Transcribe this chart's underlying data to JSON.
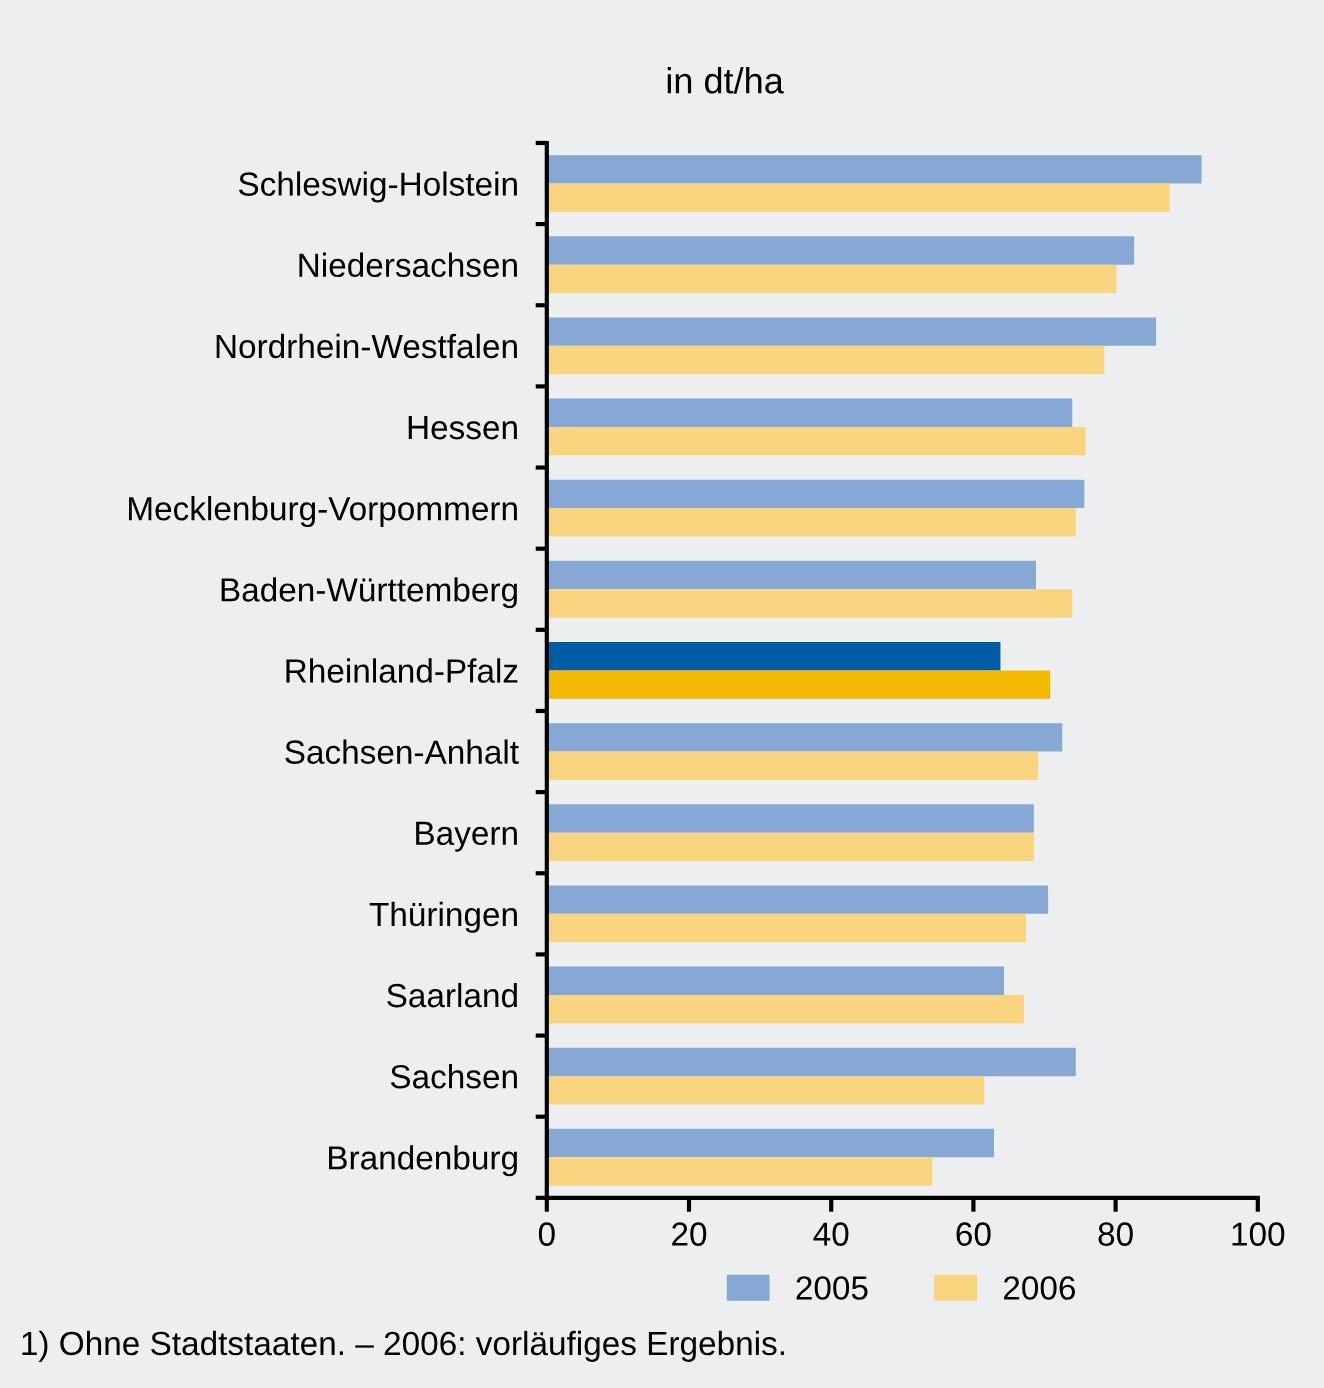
{
  "chart_data": {
    "type": "bar",
    "orientation": "horizontal",
    "title": "in dt/ha",
    "categories": [
      "Schleswig-Holstein",
      "Niedersachsen",
      "Nordrhein-Westfalen",
      "Hessen",
      "Mecklenburg-Vorpommern",
      "Baden-Württemberg",
      "Rheinland-Pfalz",
      "Sachsen-Anhalt",
      "Bayern",
      "Thüringen",
      "Saarland",
      "Sachsen",
      "Brandenburg"
    ],
    "series": [
      {
        "name": "2005",
        "color": "#87a7d4",
        "colors": [
          "#87a7d4",
          "#87a7d4",
          "#87a7d4",
          "#87a7d4",
          "#87a7d4",
          "#87a7d4",
          "#005ca4",
          "#87a7d4",
          "#87a7d4",
          "#87a7d4",
          "#87a7d4",
          "#87a7d4",
          "#87a7d4"
        ],
        "values": [
          92.1,
          82.6,
          85.7,
          73.9,
          75.6,
          68.8,
          63.8,
          72.5,
          68.5,
          70.5,
          64.3,
          74.4,
          62.9
        ]
      },
      {
        "name": "2006",
        "color": "#f9d47f",
        "colors": [
          "#f9d47f",
          "#f9d47f",
          "#f9d47f",
          "#f9d47f",
          "#f9d47f",
          "#f9d47f",
          "#f2b900",
          "#f9d47f",
          "#f9d47f",
          "#f9d47f",
          "#f9d47f",
          "#f9d47f",
          "#f9d47f"
        ],
        "values": [
          87.6,
          80.1,
          78.4,
          75.8,
          74.4,
          73.9,
          70.8,
          69.1,
          68.5,
          67.4,
          67.1,
          61.5,
          54.2
        ]
      }
    ],
    "xlim": [
      0,
      100
    ],
    "xticks": [
      0,
      20,
      40,
      60,
      80,
      100
    ],
    "grid": false,
    "legend": "bottom",
    "annotations": [
      "1) Ohne Stadtstaaten. – 2006: vorläufiges Ergebnis."
    ]
  }
}
